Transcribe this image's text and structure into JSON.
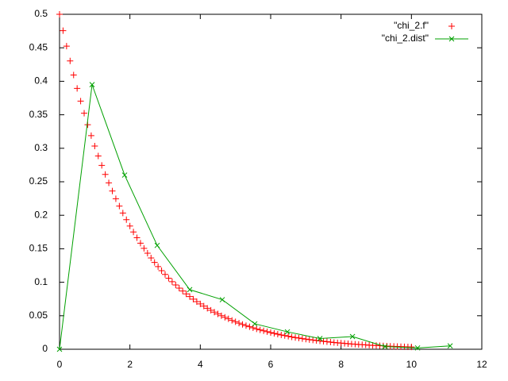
{
  "chart_data": {
    "type": "line",
    "xlim": [
      0,
      12
    ],
    "ylim": [
      0,
      0.5
    ],
    "xticks": [
      0,
      2,
      4,
      6,
      8,
      10,
      12
    ],
    "yticks": [
      0,
      0.05,
      0.1,
      0.15,
      0.2,
      0.25,
      0.3,
      0.35,
      0.4,
      0.45,
      0.5
    ],
    "grid": false,
    "legend": "top-right",
    "series": [
      {
        "name": "\"chi_2.f\"",
        "color": "#ff0000",
        "style": "points",
        "x": [
          0,
          0.1,
          0.2,
          0.3,
          0.4,
          0.5,
          0.6,
          0.7,
          0.8,
          0.9,
          1,
          1.1,
          1.2,
          1.3,
          1.4,
          1.5,
          1.6,
          1.7,
          1.8,
          1.9,
          2,
          2.1,
          2.2,
          2.3,
          2.4,
          2.5,
          2.6,
          2.7,
          2.8,
          2.9,
          3,
          3.1,
          3.2,
          3.3,
          3.4,
          3.5,
          3.6,
          3.7,
          3.8,
          3.9,
          4,
          4.1,
          4.2,
          4.3,
          4.4,
          4.5,
          4.6,
          4.7,
          4.8,
          4.9,
          5,
          5.1,
          5.2,
          5.3,
          5.4,
          5.5,
          5.6,
          5.7,
          5.8,
          5.9,
          6,
          6.1,
          6.2,
          6.3,
          6.4,
          6.5,
          6.6,
          6.7,
          6.8,
          6.9,
          7,
          7.1,
          7.2,
          7.3,
          7.4,
          7.5,
          7.6,
          7.7,
          7.8,
          7.9,
          8,
          8.1,
          8.2,
          8.3,
          8.4,
          8.5,
          8.6,
          8.7,
          8.8,
          8.9,
          9,
          9.1,
          9.2,
          9.3,
          9.4,
          9.5,
          9.6,
          9.7,
          9.8,
          9.9,
          10
        ],
        "values": [
          0.5,
          0.4756,
          0.4524,
          0.4304,
          0.4094,
          0.3894,
          0.3704,
          0.3523,
          0.3352,
          0.3188,
          0.3033,
          0.2885,
          0.2744,
          0.261,
          0.2483,
          0.2362,
          0.2247,
          0.2137,
          0.2033,
          0.1934,
          0.1839,
          0.175,
          0.1664,
          0.1583,
          0.1506,
          0.1433,
          0.1363,
          0.1296,
          0.1233,
          0.1173,
          0.1116,
          0.1061,
          0.1009,
          0.096,
          0.0913,
          0.0869,
          0.0826,
          0.0786,
          0.0748,
          0.0711,
          0.0677,
          0.0644,
          0.0612,
          0.0582,
          0.0554,
          0.0527,
          0.0501,
          0.0477,
          0.0454,
          0.0431,
          0.041,
          0.039,
          0.0371,
          0.0353,
          0.0336,
          0.032,
          0.0304,
          0.0289,
          0.0275,
          0.0262,
          0.0249,
          0.0237,
          0.0225,
          0.0214,
          0.0204,
          0.0194,
          0.0184,
          0.0175,
          0.0167,
          0.0159,
          0.0151,
          0.0144,
          0.0137,
          0.013,
          0.0124,
          0.0118,
          0.0112,
          0.0106,
          0.0101,
          0.0096,
          0.0092,
          0.0087,
          0.0083,
          0.0079,
          0.0075,
          0.0071,
          0.0068,
          0.0065,
          0.0061,
          0.0058,
          0.0056,
          0.0053,
          0.005,
          0.0048,
          0.0045,
          0.0043,
          0.0041,
          0.0039,
          0.0037,
          0.0035,
          0.0034
        ]
      },
      {
        "name": "\"chi_2.dist\"",
        "color": "#00a000",
        "style": "linespoints",
        "x": [
          0,
          0.925,
          1.85,
          2.775,
          3.7,
          4.625,
          5.55,
          6.475,
          7.4,
          8.325,
          9.25,
          10.175,
          11.1
        ],
        "values": [
          0,
          0.395,
          0.26,
          0.155,
          0.089,
          0.074,
          0.038,
          0.026,
          0.016,
          0.019,
          0.004,
          0.002,
          0.005
        ]
      }
    ]
  }
}
